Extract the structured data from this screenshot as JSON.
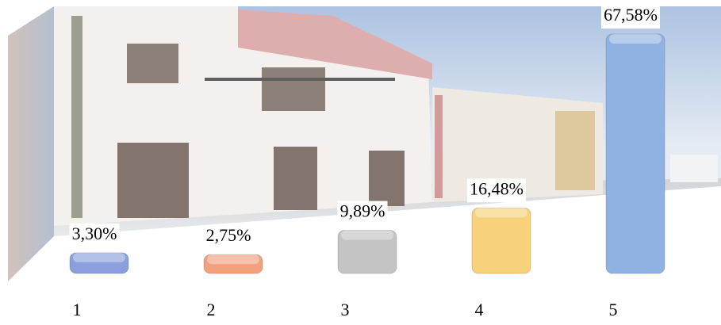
{
  "chart_data": {
    "type": "bar",
    "categories": [
      "1",
      "2",
      "3",
      "4",
      "5"
    ],
    "values": [
      3.3,
      2.75,
      9.89,
      16.48,
      67.58
    ],
    "value_labels": [
      "3,30%",
      "2,75%",
      "9,89%",
      "16,48%",
      "67,58%"
    ],
    "colors": [
      "#8b9fdc",
      "#f2a07e",
      "#c4c4c4",
      "#f8d27a",
      "#8fb2e2"
    ]
  }
}
